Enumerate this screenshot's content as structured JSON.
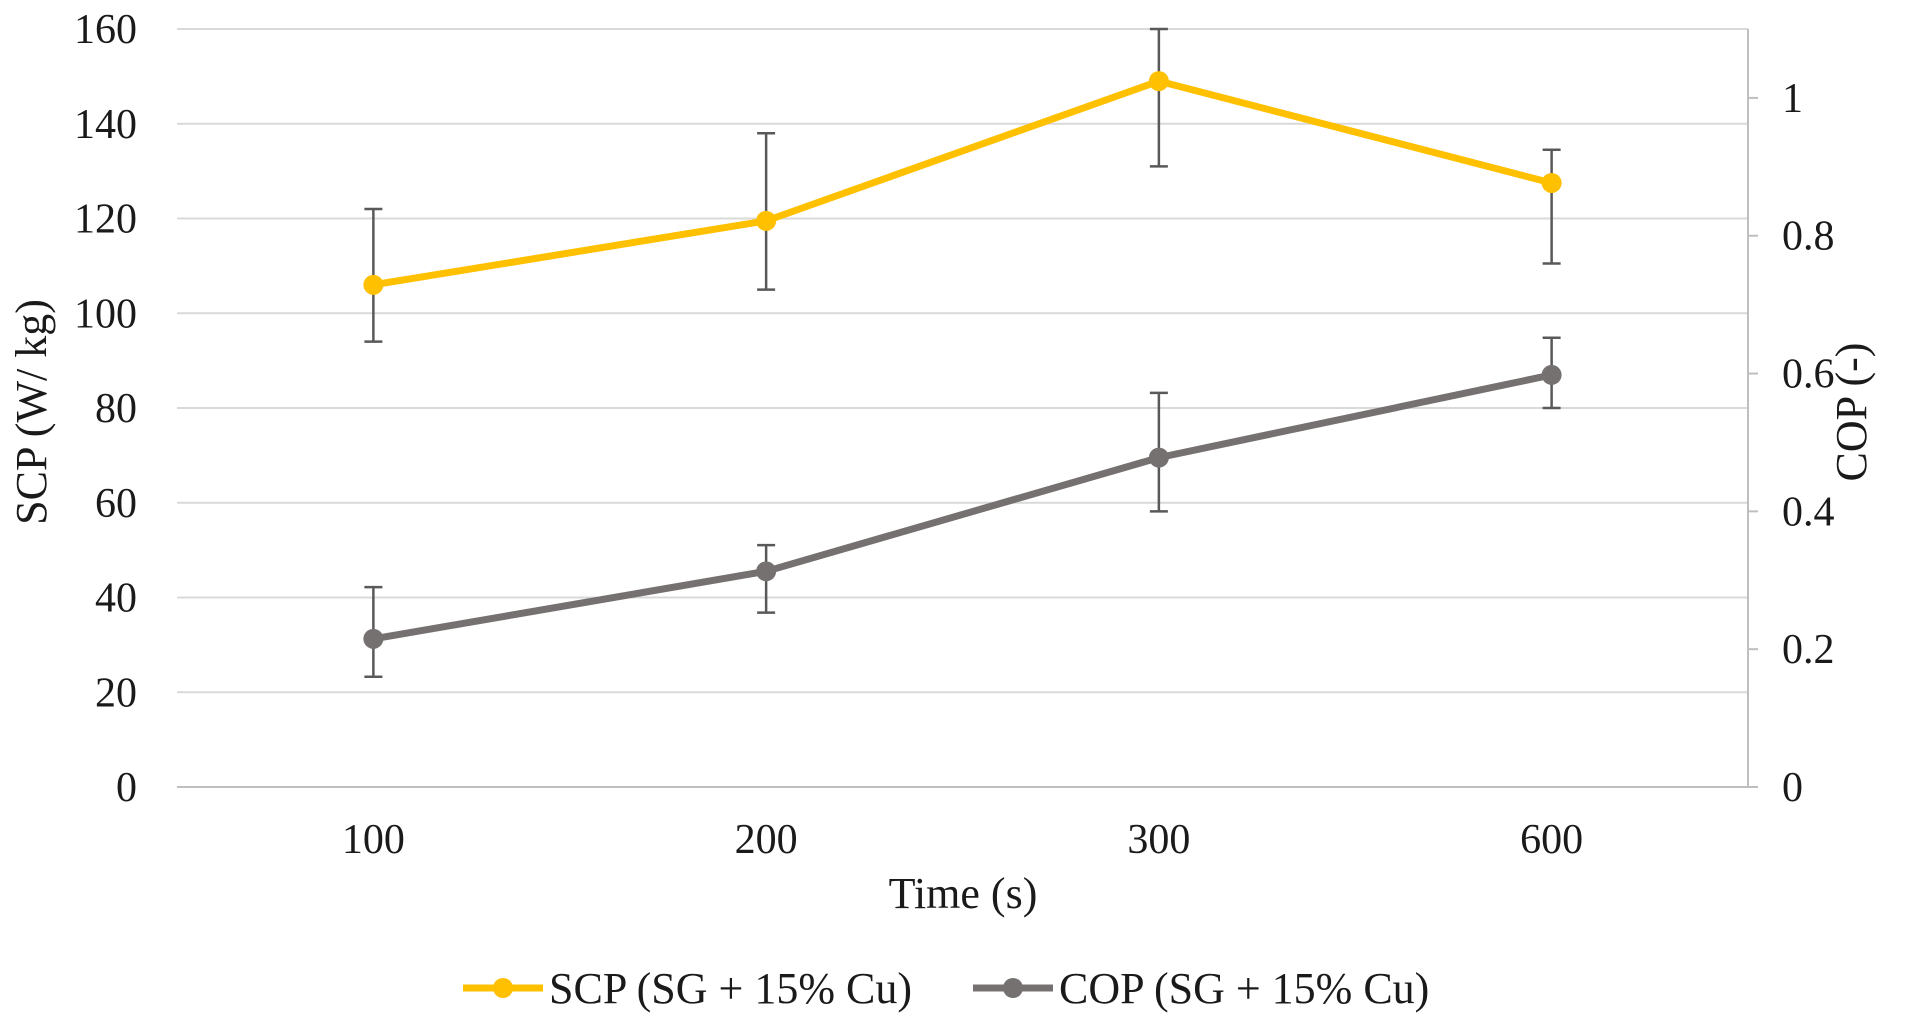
{
  "chart_data": {
    "type": "line",
    "title": "",
    "xlabel": "Time (s)",
    "ylabel": "SCP (W/ kg)",
    "y2label": "COP (-)",
    "categories": [
      "100",
      "200",
      "300",
      "600"
    ],
    "ylim": [
      0,
      160
    ],
    "y_ticks": [
      "0",
      "20",
      "40",
      "60",
      "80",
      "100",
      "120",
      "140",
      "160"
    ],
    "y2lim": [
      0,
      1.1
    ],
    "y2_ticks": [
      "0",
      "0.2",
      "0.4",
      "0.6",
      "0.8",
      "1"
    ],
    "grid": true,
    "legend_position": "bottom",
    "series": [
      {
        "name": "SCP (SG + 15% Cu)",
        "axis": "left",
        "color": "#FFC000",
        "values": [
          106,
          119.5,
          149,
          127.5
        ],
        "err_low": [
          94,
          105,
          131,
          110.5
        ],
        "err_high": [
          122,
          138,
          160,
          134.5
        ]
      },
      {
        "name": "COP (SG + 15% Cu)",
        "axis": "right",
        "color": "#767171",
        "values": [
          0.215,
          0.313,
          0.478,
          0.598
        ],
        "err_low": [
          0.16,
          0.253,
          0.4,
          0.55
        ],
        "err_high": [
          0.29,
          0.351,
          0.572,
          0.652
        ]
      }
    ]
  }
}
